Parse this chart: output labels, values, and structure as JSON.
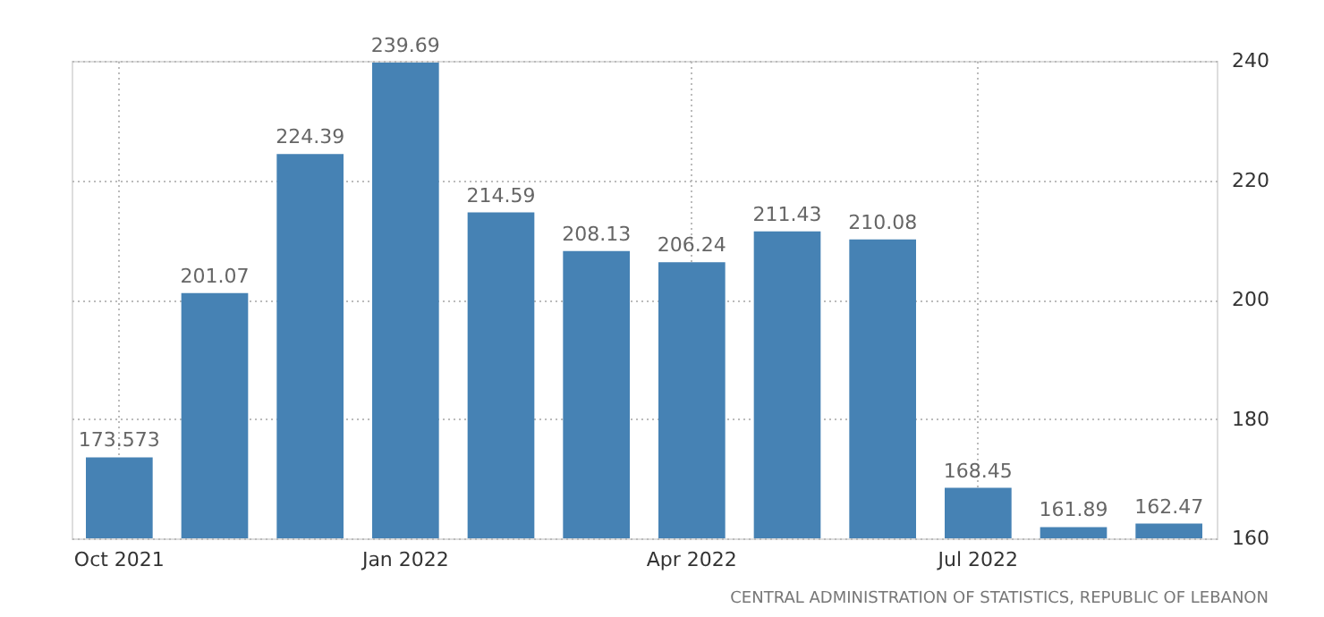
{
  "chart_data": {
    "type": "bar",
    "categories": [
      "Oct 2021",
      null,
      null,
      "Jan 2022",
      null,
      null,
      "Apr 2022",
      null,
      null,
      "Jul 2022",
      null,
      null
    ],
    "values": [
      173.573,
      201.07,
      224.39,
      239.69,
      214.59,
      208.13,
      206.24,
      211.43,
      210.08,
      168.45,
      161.89,
      162.47
    ],
    "color": "#4682b4",
    "ylim": [
      160,
      240
    ],
    "yticks": [
      160,
      180,
      200,
      220,
      240
    ],
    "grid": true,
    "data_labels": true,
    "annotations": [
      "CENTRAL ADMINISTRATION OF STATISTICS, REPUBLIC OF LEBANON"
    ]
  }
}
